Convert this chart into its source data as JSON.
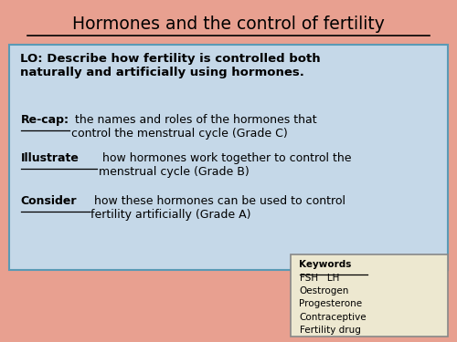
{
  "title": "Hormones and the control of fertility",
  "background_color": "#E8A090",
  "main_box_color": "#C5D8E8",
  "keywords_box_color": "#EDE8D0",
  "lo_bold_text": "LO: Describe how fertility is controlled both\nnaturally and artificially using hormones.",
  "recap_bold": "Re-cap:",
  "recap_rest": " the names and roles of the hormones that\ncontrol the menstrual cycle (Grade C)",
  "illustrate_bold": "Illustrate",
  "illustrate_rest": " how hormones work together to control the\nmenstrual cycle (Grade B)",
  "consider_bold": "Consider",
  "consider_rest": " how these hormones can be used to control\nfertility artificially (Grade A)",
  "keywords_title": "Keywords",
  "keywords": [
    "FSH   LH",
    "Oestrogen",
    "Progesterone",
    "Contraceptive",
    "Fertility drug"
  ]
}
